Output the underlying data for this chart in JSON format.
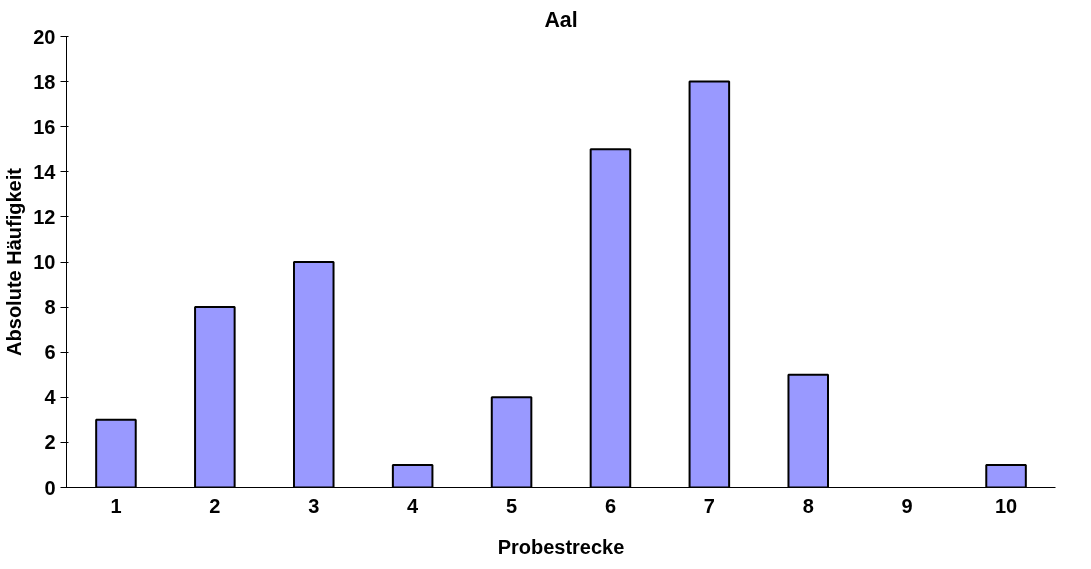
{
  "chart_data": {
    "type": "bar",
    "title": "Aal",
    "xlabel": "Probestrecke",
    "ylabel": "Absolute Häufigkeit",
    "categories": [
      "1",
      "2",
      "3",
      "4",
      "5",
      "6",
      "7",
      "8",
      "9",
      "10"
    ],
    "values": [
      3,
      8,
      10,
      1,
      4,
      15,
      18,
      5,
      0,
      1
    ],
    "color": "#9999ff",
    "ylim": [
      0,
      20
    ],
    "yticks": [
      0,
      2,
      4,
      6,
      8,
      10,
      12,
      14,
      16,
      18,
      20
    ],
    "grid": false
  }
}
